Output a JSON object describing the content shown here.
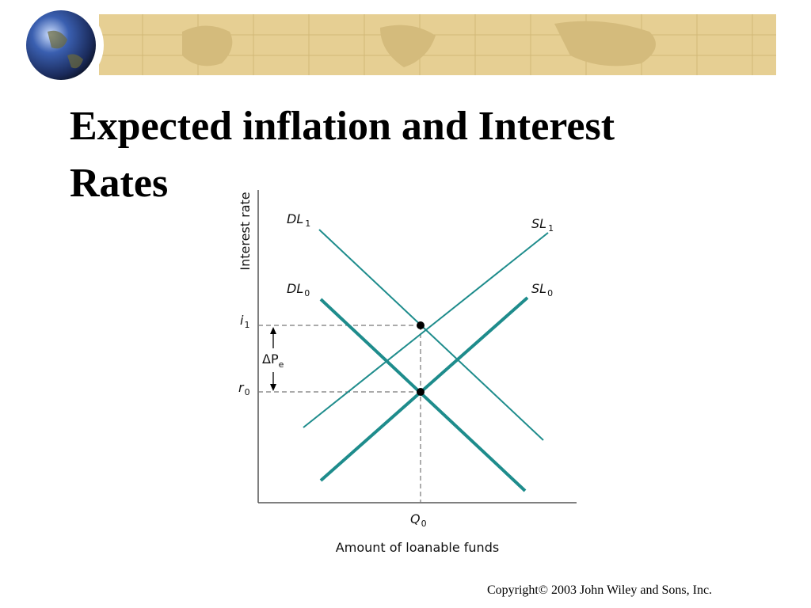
{
  "title": "Expected inflation and Interest Rates",
  "diagram": {
    "y_axis_label": "Interest rate",
    "x_axis_label": "Amount of loanable funds",
    "curves": [
      {
        "main": "DL",
        "sub": "1"
      },
      {
        "main": "SL",
        "sub": "1"
      },
      {
        "main": "DL",
        "sub": "0"
      },
      {
        "main": "SL",
        "sub": "0"
      }
    ],
    "y_labels": [
      {
        "main": "i",
        "sub": "1"
      },
      {
        "main": "r",
        "sub": "0"
      }
    ],
    "x_label": {
      "main": "Q",
      "sub": "0"
    },
    "change_label": {
      "main": "ΔP",
      "sub": "e"
    }
  },
  "footer": "Copyright© 2003  John Wiley and Sons, Inc."
}
